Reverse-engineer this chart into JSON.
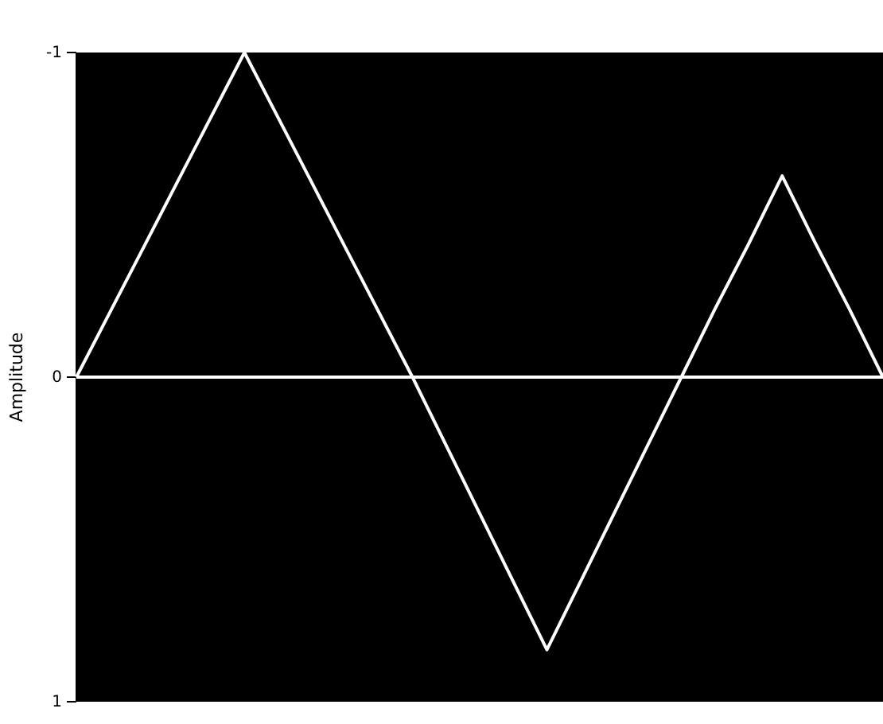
{
  "chart_data": {
    "type": "line",
    "ylabel": "Amplitude",
    "categories": [
      null,
      null,
      null,
      null,
      null,
      null,
      null,
      null,
      null,
      null,
      null,
      null,
      null,
      null,
      null,
      null,
      null,
      null,
      null,
      null,
      null,
      null,
      null,
      null,
      null
    ],
    "series": [
      {
        "color": "#ffffff",
        "values": [
          0,
          -0.2,
          -0.4,
          -0.6,
          -0.8,
          -1,
          -0.8,
          -0.6,
          -0.4,
          -0.2,
          0,
          0.21,
          0.42,
          0.63,
          0.84,
          0.63,
          0.42,
          0.21,
          0,
          -0.21,
          -0.41,
          -0.62,
          -0.41,
          -0.21,
          0
        ]
      }
    ],
    "ylim": [
      1,
      -1
    ],
    "yticks": [
      -1,
      0,
      1
    ],
    "tick_labels": "y",
    "grid": false,
    "marker": "none",
    "line_style": "solid",
    "ref_lines": [
      {
        "axis": "y",
        "value": 0,
        "color": "#ffffff"
      }
    ]
  }
}
